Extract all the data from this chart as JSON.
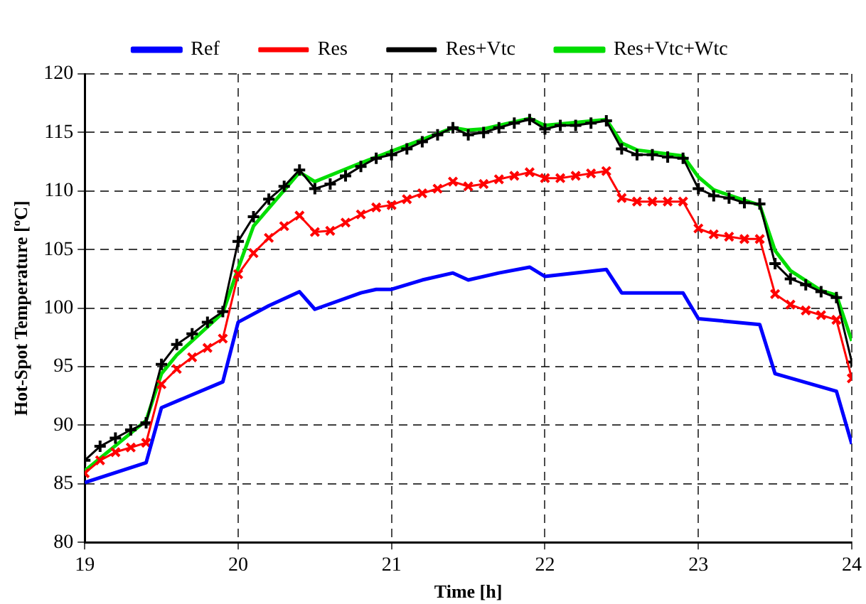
{
  "chart_data": {
    "type": "line",
    "xlabel": "Time [h]",
    "ylabel": "Hot-Spot Temperature [ºC]",
    "xlim": [
      19,
      24
    ],
    "xticks": [
      19,
      20,
      21,
      22,
      23,
      24
    ],
    "ylim": [
      80,
      120
    ],
    "yticks": [
      80,
      85,
      90,
      95,
      100,
      105,
      110,
      115,
      120
    ],
    "grid": true,
    "legend": "top",
    "line_style": "solid",
    "series": [
      {
        "name": "Ref",
        "color": "#0000ff",
        "marker": "none",
        "x": [
          19.0,
          19.4,
          19.5,
          19.9,
          20.0,
          20.2,
          20.4,
          20.5,
          20.8,
          20.9,
          21.0,
          21.2,
          21.4,
          21.5,
          21.7,
          21.9,
          22.0,
          22.4,
          22.5,
          22.9,
          23.0,
          23.4,
          23.5,
          23.9,
          24.0
        ],
        "values": [
          85.1,
          86.8,
          91.5,
          93.7,
          98.8,
          100.2,
          101.4,
          99.9,
          101.3,
          101.6,
          101.6,
          102.4,
          103.0,
          102.4,
          103.0,
          103.5,
          102.7,
          103.3,
          101.3,
          101.3,
          99.1,
          98.6,
          94.4,
          92.9,
          88.4
        ]
      },
      {
        "name": "Res",
        "color": "#ff0000",
        "marker": "cross",
        "x": [
          19.0,
          19.1,
          19.2,
          19.3,
          19.4,
          19.5,
          19.6,
          19.7,
          19.8,
          19.9,
          20.0,
          20.1,
          20.2,
          20.3,
          20.4,
          20.5,
          20.6,
          20.7,
          20.8,
          20.9,
          21.0,
          21.1,
          21.2,
          21.3,
          21.4,
          21.5,
          21.6,
          21.7,
          21.8,
          21.9,
          22.0,
          22.1,
          22.2,
          22.3,
          22.4,
          22.5,
          22.6,
          22.7,
          22.8,
          22.9,
          23.0,
          23.1,
          23.2,
          23.3,
          23.4,
          23.5,
          23.6,
          23.7,
          23.8,
          23.9,
          24.0
        ],
        "values": [
          85.9,
          87.0,
          87.7,
          88.1,
          88.5,
          93.5,
          94.8,
          95.8,
          96.6,
          97.4,
          102.9,
          104.7,
          106.0,
          107.0,
          107.9,
          106.5,
          106.6,
          107.3,
          108.0,
          108.6,
          108.8,
          109.3,
          109.8,
          110.2,
          110.8,
          110.4,
          110.6,
          111.0,
          111.3,
          111.6,
          111.1,
          111.1,
          111.3,
          111.5,
          111.7,
          109.4,
          109.1,
          109.1,
          109.1,
          109.1,
          106.8,
          106.3,
          106.1,
          105.9,
          105.9,
          101.2,
          100.3,
          99.8,
          99.4,
          99.0,
          94.0
        ]
      },
      {
        "name": "Res+Vtc",
        "color": "#000000",
        "marker": "plus",
        "x": [
          19.0,
          19.1,
          19.2,
          19.3,
          19.4,
          19.5,
          19.6,
          19.7,
          19.8,
          19.9,
          20.0,
          20.1,
          20.2,
          20.3,
          20.4,
          20.5,
          20.6,
          20.7,
          20.8,
          20.9,
          21.0,
          21.1,
          21.2,
          21.3,
          21.4,
          21.5,
          21.6,
          21.7,
          21.8,
          21.9,
          22.0,
          22.1,
          22.2,
          22.3,
          22.4,
          22.5,
          22.6,
          22.7,
          22.8,
          22.9,
          23.0,
          23.1,
          23.2,
          23.3,
          23.4,
          23.5,
          23.6,
          23.7,
          23.8,
          23.9,
          24.0
        ],
        "values": [
          87.0,
          88.2,
          88.9,
          89.6,
          90.2,
          95.2,
          96.9,
          97.8,
          98.8,
          99.7,
          105.7,
          107.8,
          109.3,
          110.4,
          111.8,
          110.2,
          110.6,
          111.3,
          112.1,
          112.8,
          113.1,
          113.6,
          114.2,
          114.8,
          115.4,
          114.8,
          115.0,
          115.4,
          115.8,
          116.1,
          115.3,
          115.6,
          115.6,
          115.8,
          116.0,
          113.6,
          113.1,
          113.1,
          112.9,
          112.8,
          110.2,
          109.6,
          109.4,
          109.0,
          108.9,
          103.8,
          102.5,
          102.0,
          101.4,
          100.9,
          95.4
        ]
      },
      {
        "name": "Res+Vtc+Wtc",
        "color": "#00dd00",
        "marker": "none",
        "x": [
          19.0,
          19.4,
          19.5,
          19.6,
          19.9,
          20.0,
          20.1,
          20.4,
          20.5,
          20.8,
          20.9,
          21.4,
          21.5,
          21.6,
          21.9,
          22.0,
          22.4,
          22.5,
          22.6,
          22.9,
          23.0,
          23.1,
          23.3,
          23.4,
          23.5,
          23.6,
          23.8,
          23.9,
          24.0
        ],
        "values": [
          86.1,
          90.4,
          94.4,
          96.0,
          99.6,
          103.4,
          107.0,
          111.6,
          110.8,
          112.4,
          112.9,
          115.4,
          115.2,
          115.3,
          116.2,
          115.6,
          116.1,
          114.1,
          113.5,
          113.0,
          111.2,
          110.1,
          109.2,
          108.8,
          104.9,
          103.2,
          101.5,
          101.1,
          97.2
        ]
      }
    ]
  }
}
